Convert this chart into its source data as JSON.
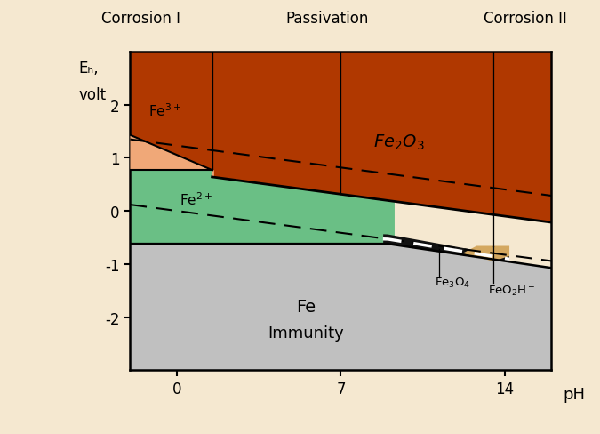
{
  "background_color": "#f5e8d0",
  "plot_bg": "#f5e8d0",
  "xlim": [
    -2,
    16
  ],
  "ylim": [
    -3,
    3
  ],
  "xticks": [
    0,
    7,
    14
  ],
  "yticks": [
    -2,
    -1,
    0,
    1,
    2
  ],
  "xlabel": "pH",
  "ylabel_line1": "Eₕ,",
  "ylabel_line2": "volt",
  "title_corrosion1": "Corrosion I",
  "title_passivation": "Passivation",
  "title_corrosion2": "Corrosion II",
  "colors": {
    "immunity_gray": "#c0c0c0",
    "fe2o3_brown": "#b03800",
    "fe2plus_green": "#6abf85",
    "fe3plus_salmon": "#f0a878",
    "fe3o4_black": "#111111",
    "feo2h_tan": "#d4a860",
    "white_dashed": "#ffffff"
  }
}
